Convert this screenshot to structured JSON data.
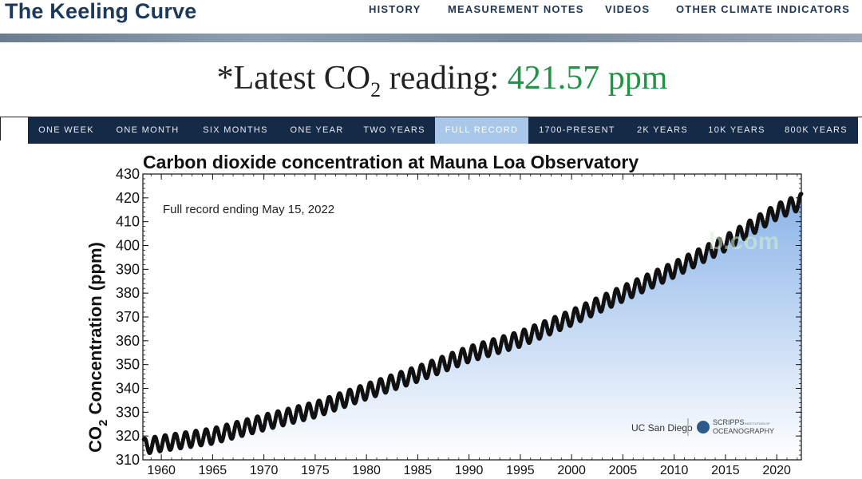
{
  "header": {
    "site_title": "The Keeling Curve",
    "nav": [
      "HISTORY",
      "MEASUREMENT NOTES",
      "VIDEOS",
      "OTHER CLIMATE INDICATORS"
    ]
  },
  "reading": {
    "prefix": "*Latest CO",
    "subscript": "2",
    "middle": " reading: ",
    "value": "421.57 ppm",
    "value_color": "#1f9444"
  },
  "tabs": {
    "items": [
      "ONE WEEK",
      "ONE MONTH",
      "SIX MONTHS",
      "ONE YEAR",
      "TWO YEARS",
      "FULL RECORD",
      "1700-PRESENT",
      "2K YEARS",
      "10K YEARS",
      "800K YEARS"
    ],
    "active": "FULL RECORD"
  },
  "chart_data": {
    "type": "scatter",
    "title": "Carbon dioxide concentration at Mauna Loa Observatory",
    "annotation": "Full record ending May 15, 2022",
    "ylabel_main": "CO",
    "ylabel_sub": "2",
    "ylabel_rest": " Concentration (ppm)",
    "xlim": [
      1958.2,
      2022.4
    ],
    "ylim": [
      310,
      430
    ],
    "xticks": [
      1960,
      1965,
      1970,
      1975,
      1980,
      1985,
      1990,
      1995,
      2000,
      2005,
      2010,
      2015,
      2020
    ],
    "yticks": [
      310,
      320,
      330,
      340,
      350,
      360,
      370,
      380,
      390,
      400,
      410,
      420,
      430
    ],
    "trend_points": [
      [
        1958.3,
        315.7
      ],
      [
        1960,
        316.9
      ],
      [
        1965,
        320.0
      ],
      [
        1970,
        325.7
      ],
      [
        1975,
        331.1
      ],
      [
        1980,
        338.7
      ],
      [
        1985,
        346.1
      ],
      [
        1990,
        354.4
      ],
      [
        1995,
        360.8
      ],
      [
        2000,
        369.7
      ],
      [
        2005,
        379.8
      ],
      [
        2010,
        389.9
      ],
      [
        2015,
        401.0
      ],
      [
        2020,
        414.2
      ],
      [
        2022.4,
        418.5
      ]
    ],
    "seasonal_amplitude": 3.2,
    "fill_color_top": "#8ab4e8",
    "point_color": "#111111",
    "logos": [
      "UC San Diego",
      "SCRIPPS",
      "INSTITUTION OF",
      "OCEANOGRAPHY"
    ]
  },
  "watermark": "b.com"
}
